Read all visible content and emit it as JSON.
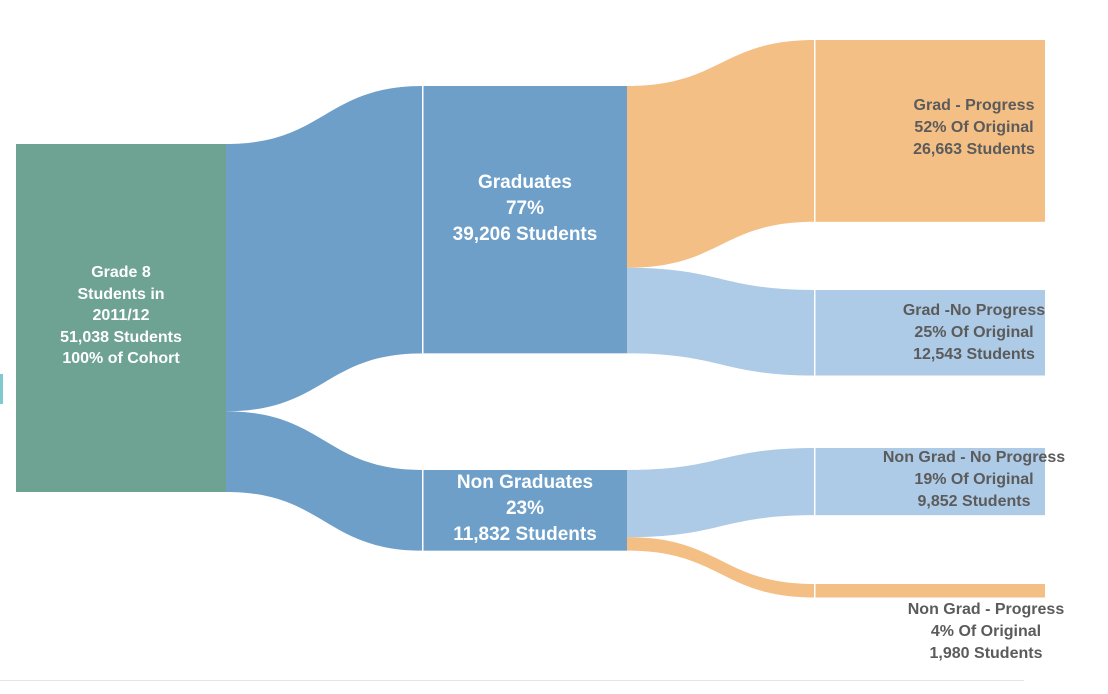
{
  "colors": {
    "cohort": "#6ea393",
    "blue": "#6d9fc9",
    "light_blue": "#adcae6",
    "orange": "#f4bf85",
    "gap": "#ffffff",
    "out_text": "#5b5b5b"
  },
  "nodes": {
    "cohort": {
      "line1": "Grade 8",
      "line2": "Students in",
      "line3": "2011/12",
      "line4": "51,038 Students",
      "line5": "100% of Cohort"
    },
    "graduates": {
      "line1": "Graduates",
      "line2": "77%",
      "line3": "39,206 Students"
    },
    "non_graduates": {
      "line1": "Non Graduates",
      "line2": "23%",
      "line3": "11,832 Students"
    },
    "grad_progress": {
      "line1": "Grad - Progress",
      "line2": "52% Of Original",
      "line3": "26,663 Students"
    },
    "grad_no_progress": {
      "line1": "Grad -No Progress",
      "line2": "25% Of Original",
      "line3": "12,543 Students"
    },
    "nongrad_no_progress": {
      "line1": "Non Grad - No Progress",
      "line2": "19% Of Original",
      "line3": "9,852 Students"
    },
    "nongrad_progress": {
      "line1": "Non Grad - Progress",
      "line2": "4% Of Original",
      "line3": "1,980 Students"
    }
  },
  "chart_data": {
    "type": "sankey",
    "nodes": [
      {
        "id": "cohort",
        "label": "Grade 8 Students in 2011/12",
        "students": 51038,
        "percent": 100
      },
      {
        "id": "graduates",
        "label": "Graduates",
        "students": 39206,
        "percent": 77
      },
      {
        "id": "non_graduates",
        "label": "Non Graduates",
        "students": 11832,
        "percent": 23
      },
      {
        "id": "grad_progress",
        "label": "Grad - Progress",
        "students": 26663,
        "percent": 52
      },
      {
        "id": "grad_no_progress",
        "label": "Grad -No Progress",
        "students": 12543,
        "percent": 25
      },
      {
        "id": "nongrad_no_progress",
        "label": "Non Grad - No Progress",
        "students": 9852,
        "percent": 19
      },
      {
        "id": "nongrad_progress",
        "label": "Non Grad - Progress",
        "students": 1980,
        "percent": 4
      }
    ],
    "links": [
      {
        "source": "cohort",
        "target": "graduates",
        "value": 39206
      },
      {
        "source": "cohort",
        "target": "non_graduates",
        "value": 11832
      },
      {
        "source": "graduates",
        "target": "grad_progress",
        "value": 26663
      },
      {
        "source": "graduates",
        "target": "grad_no_progress",
        "value": 12543
      },
      {
        "source": "non_graduates",
        "target": "nongrad_no_progress",
        "value": 9852
      },
      {
        "source": "non_graduates",
        "target": "nongrad_progress",
        "value": 1980
      }
    ]
  }
}
